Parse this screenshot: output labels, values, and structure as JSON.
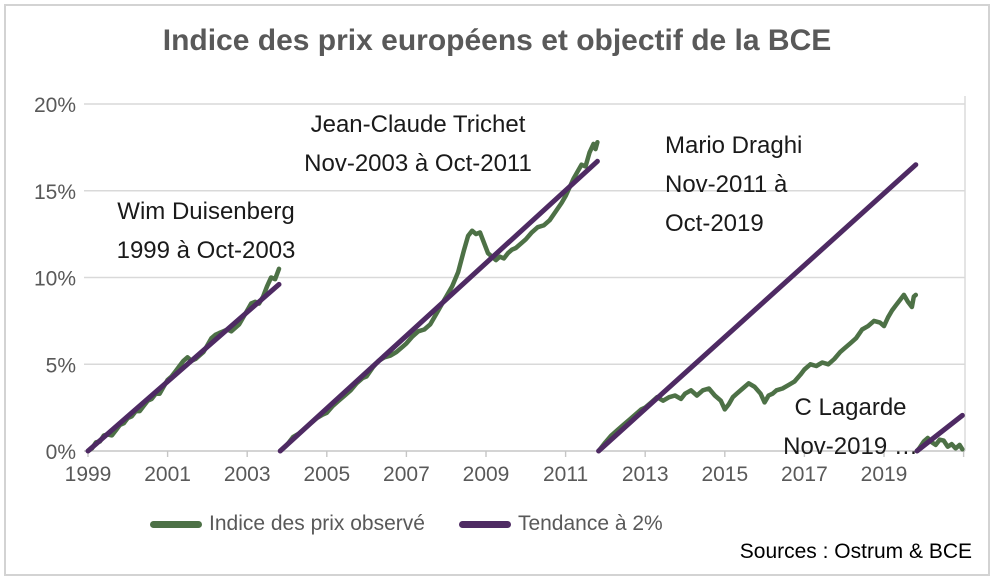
{
  "title": "Indice des prix européens et objectif de la BCE",
  "sources_note": "Sources : Ostrum & BCE",
  "colors": {
    "observed": "#4d7146",
    "trend": "#4e2a63",
    "title_gray": "#595959",
    "grid": "#d9d9d9",
    "axis": "#c6c6c6",
    "annotation": "#1a1a1a"
  },
  "legend": {
    "items": [
      {
        "label": "Indice des prix observé",
        "color": "#4d7146"
      },
      {
        "label": "Tendance à 2%",
        "color": "#4e2a63"
      }
    ]
  },
  "chart_data": {
    "type": "line",
    "title": "Indice des prix européens et objectif de la BCE",
    "xlabel": "",
    "ylabel": "",
    "xlim": [
      1999,
      2021
    ],
    "ylim": [
      0,
      20
    ],
    "grid": "horizontal",
    "legend_position": "bottom",
    "y_ticks": {
      "values": [
        0,
        5,
        10,
        15,
        20
      ],
      "labels": [
        "0%",
        "5%",
        "10%",
        "15%",
        "20%"
      ]
    },
    "x_ticks": {
      "values": [
        1999,
        2001,
        2003,
        2005,
        2007,
        2009,
        2011,
        2013,
        2015,
        2017,
        2019,
        2021
      ],
      "labels": [
        "1999",
        "2001",
        "2003",
        "2005",
        "2007",
        "2009",
        "2011",
        "2013",
        "2015",
        "2017",
        "2019",
        ""
      ]
    },
    "annotations": [
      {
        "lines": [
          "Wim Duisenberg",
          "1999 à Oct-2003"
        ]
      },
      {
        "lines": [
          "Jean-Claude Trichet",
          "Nov-2003 à Oct-2011"
        ]
      },
      {
        "lines": [
          "Mario Draghi",
          "Nov-2011 à",
          "Oct-2019"
        ]
      },
      {
        "lines": [
          "C Lagarde",
          "Nov-2019 …"
        ]
      }
    ],
    "series": [
      {
        "name": "Indice des prix observé",
        "color": "#4d7146",
        "width": 4.5,
        "segments": [
          [
            [
              1999.0,
              0.0
            ],
            [
              1999.1,
              0.15
            ],
            [
              1999.2,
              0.5
            ],
            [
              1999.3,
              0.55
            ],
            [
              1999.4,
              0.9
            ],
            [
              1999.5,
              0.95
            ],
            [
              1999.6,
              0.9
            ],
            [
              1999.7,
              1.2
            ],
            [
              1999.8,
              1.5
            ],
            [
              1999.9,
              1.6
            ],
            [
              2000.0,
              1.9
            ],
            [
              2000.1,
              2.0
            ],
            [
              2000.2,
              2.3
            ],
            [
              2000.3,
              2.3
            ],
            [
              2000.4,
              2.6
            ],
            [
              2000.5,
              2.9
            ],
            [
              2000.6,
              3.0
            ],
            [
              2000.7,
              3.3
            ],
            [
              2000.8,
              3.3
            ],
            [
              2000.9,
              3.7
            ],
            [
              2001.0,
              4.1
            ],
            [
              2001.1,
              4.3
            ],
            [
              2001.2,
              4.6
            ],
            [
              2001.3,
              4.9
            ],
            [
              2001.4,
              5.2
            ],
            [
              2001.5,
              5.4
            ],
            [
              2001.6,
              5.2
            ],
            [
              2001.7,
              5.3
            ],
            [
              2001.8,
              5.5
            ],
            [
              2001.9,
              5.7
            ],
            [
              2002.0,
              6.1
            ],
            [
              2002.1,
              6.5
            ],
            [
              2002.2,
              6.7
            ],
            [
              2002.3,
              6.8
            ],
            [
              2002.4,
              6.9
            ],
            [
              2002.5,
              7.0
            ],
            [
              2002.6,
              6.9
            ],
            [
              2002.7,
              7.1
            ],
            [
              2002.8,
              7.3
            ],
            [
              2002.9,
              7.7
            ],
            [
              2003.0,
              8.1
            ],
            [
              2003.1,
              8.5
            ],
            [
              2003.2,
              8.6
            ],
            [
              2003.3,
              8.5
            ],
            [
              2003.4,
              8.9
            ],
            [
              2003.5,
              9.5
            ],
            [
              2003.6,
              10.0
            ],
            [
              2003.7,
              9.9
            ],
            [
              2003.8,
              10.5
            ]
          ],
          [
            [
              2003.83,
              0.0
            ],
            [
              2004.0,
              0.35
            ],
            [
              2004.15,
              0.8
            ],
            [
              2004.3,
              1.0
            ],
            [
              2004.45,
              1.3
            ],
            [
              2004.6,
              1.6
            ],
            [
              2004.75,
              1.9
            ],
            [
              2004.9,
              2.1
            ],
            [
              2005.0,
              2.2
            ],
            [
              2005.15,
              2.6
            ],
            [
              2005.3,
              2.9
            ],
            [
              2005.45,
              3.2
            ],
            [
              2005.6,
              3.5
            ],
            [
              2005.75,
              3.9
            ],
            [
              2005.9,
              4.2
            ],
            [
              2006.0,
              4.3
            ],
            [
              2006.15,
              4.8
            ],
            [
              2006.3,
              5.2
            ],
            [
              2006.45,
              5.4
            ],
            [
              2006.6,
              5.5
            ],
            [
              2006.75,
              5.7
            ],
            [
              2006.9,
              6.0
            ],
            [
              2007.0,
              6.2
            ],
            [
              2007.15,
              6.6
            ],
            [
              2007.3,
              6.9
            ],
            [
              2007.45,
              7.0
            ],
            [
              2007.6,
              7.3
            ],
            [
              2007.75,
              7.9
            ],
            [
              2007.9,
              8.5
            ],
            [
              2008.0,
              8.9
            ],
            [
              2008.15,
              9.5
            ],
            [
              2008.3,
              10.3
            ],
            [
              2008.45,
              11.6
            ],
            [
              2008.55,
              12.4
            ],
            [
              2008.65,
              12.7
            ],
            [
              2008.75,
              12.5
            ],
            [
              2008.85,
              12.6
            ],
            [
              2008.95,
              12.0
            ],
            [
              2009.05,
              11.4
            ],
            [
              2009.15,
              11.2
            ],
            [
              2009.25,
              11.0
            ],
            [
              2009.35,
              11.2
            ],
            [
              2009.45,
              11.1
            ],
            [
              2009.55,
              11.4
            ],
            [
              2009.65,
              11.6
            ],
            [
              2009.75,
              11.7
            ],
            [
              2009.9,
              12.0
            ],
            [
              2010.0,
              12.2
            ],
            [
              2010.15,
              12.6
            ],
            [
              2010.3,
              12.9
            ],
            [
              2010.45,
              13.0
            ],
            [
              2010.6,
              13.3
            ],
            [
              2010.75,
              13.8
            ],
            [
              2010.9,
              14.3
            ],
            [
              2011.0,
              14.7
            ],
            [
              2011.1,
              15.2
            ],
            [
              2011.2,
              15.7
            ],
            [
              2011.3,
              16.1
            ],
            [
              2011.4,
              16.5
            ],
            [
              2011.5,
              16.4
            ],
            [
              2011.6,
              17.2
            ],
            [
              2011.7,
              17.7
            ],
            [
              2011.75,
              17.4
            ],
            [
              2011.8,
              17.8
            ]
          ],
          [
            [
              2011.83,
              0.0
            ],
            [
              2012.0,
              0.5
            ],
            [
              2012.15,
              0.9
            ],
            [
              2012.3,
              1.2
            ],
            [
              2012.45,
              1.5
            ],
            [
              2012.6,
              1.8
            ],
            [
              2012.75,
              2.1
            ],
            [
              2012.9,
              2.4
            ],
            [
              2013.0,
              2.5
            ],
            [
              2013.15,
              2.8
            ],
            [
              2013.3,
              3.1
            ],
            [
              2013.45,
              2.9
            ],
            [
              2013.6,
              3.1
            ],
            [
              2013.75,
              3.2
            ],
            [
              2013.9,
              3.0
            ],
            [
              2014.0,
              3.3
            ],
            [
              2014.15,
              3.5
            ],
            [
              2014.3,
              3.2
            ],
            [
              2014.45,
              3.5
            ],
            [
              2014.6,
              3.6
            ],
            [
              2014.75,
              3.2
            ],
            [
              2014.9,
              2.9
            ],
            [
              2015.0,
              2.4
            ],
            [
              2015.1,
              2.7
            ],
            [
              2015.2,
              3.1
            ],
            [
              2015.3,
              3.3
            ],
            [
              2015.45,
              3.6
            ],
            [
              2015.6,
              3.9
            ],
            [
              2015.75,
              3.7
            ],
            [
              2015.9,
              3.3
            ],
            [
              2016.0,
              2.8
            ],
            [
              2016.1,
              3.2
            ],
            [
              2016.2,
              3.3
            ],
            [
              2016.3,
              3.5
            ],
            [
              2016.45,
              3.6
            ],
            [
              2016.6,
              3.8
            ],
            [
              2016.75,
              4.0
            ],
            [
              2016.9,
              4.4
            ],
            [
              2017.0,
              4.7
            ],
            [
              2017.15,
              5.0
            ],
            [
              2017.3,
              4.9
            ],
            [
              2017.45,
              5.1
            ],
            [
              2017.6,
              5.0
            ],
            [
              2017.75,
              5.3
            ],
            [
              2017.9,
              5.7
            ],
            [
              2018.0,
              5.9
            ],
            [
              2018.15,
              6.2
            ],
            [
              2018.3,
              6.5
            ],
            [
              2018.45,
              7.0
            ],
            [
              2018.6,
              7.2
            ],
            [
              2018.75,
              7.5
            ],
            [
              2018.9,
              7.4
            ],
            [
              2019.0,
              7.2
            ],
            [
              2019.1,
              7.7
            ],
            [
              2019.2,
              8.1
            ],
            [
              2019.3,
              8.4
            ],
            [
              2019.4,
              8.7
            ],
            [
              2019.5,
              9.0
            ],
            [
              2019.6,
              8.6
            ],
            [
              2019.7,
              8.3
            ],
            [
              2019.75,
              8.9
            ],
            [
              2019.8,
              9.0
            ]
          ],
          [
            [
              2019.83,
              0.0
            ],
            [
              2019.9,
              0.2
            ],
            [
              2020.0,
              0.55
            ],
            [
              2020.1,
              0.75
            ],
            [
              2020.2,
              0.5
            ],
            [
              2020.3,
              0.35
            ],
            [
              2020.4,
              0.65
            ],
            [
              2020.5,
              0.6
            ],
            [
              2020.6,
              0.25
            ],
            [
              2020.7,
              0.4
            ],
            [
              2020.8,
              0.15
            ],
            [
              2020.9,
              0.35
            ],
            [
              2020.97,
              0.1
            ]
          ]
        ]
      },
      {
        "name": "Tendance à 2%",
        "color": "#4e2a63",
        "width": 5,
        "segments": [
          [
            [
              1999.0,
              0.0
            ],
            [
              2003.8,
              9.6
            ]
          ],
          [
            [
              2003.83,
              0.0
            ],
            [
              2011.8,
              16.7
            ]
          ],
          [
            [
              2011.83,
              0.0
            ],
            [
              2019.8,
              16.5
            ]
          ],
          [
            [
              2019.83,
              0.0
            ],
            [
              2020.97,
              2.05
            ]
          ]
        ]
      }
    ]
  }
}
